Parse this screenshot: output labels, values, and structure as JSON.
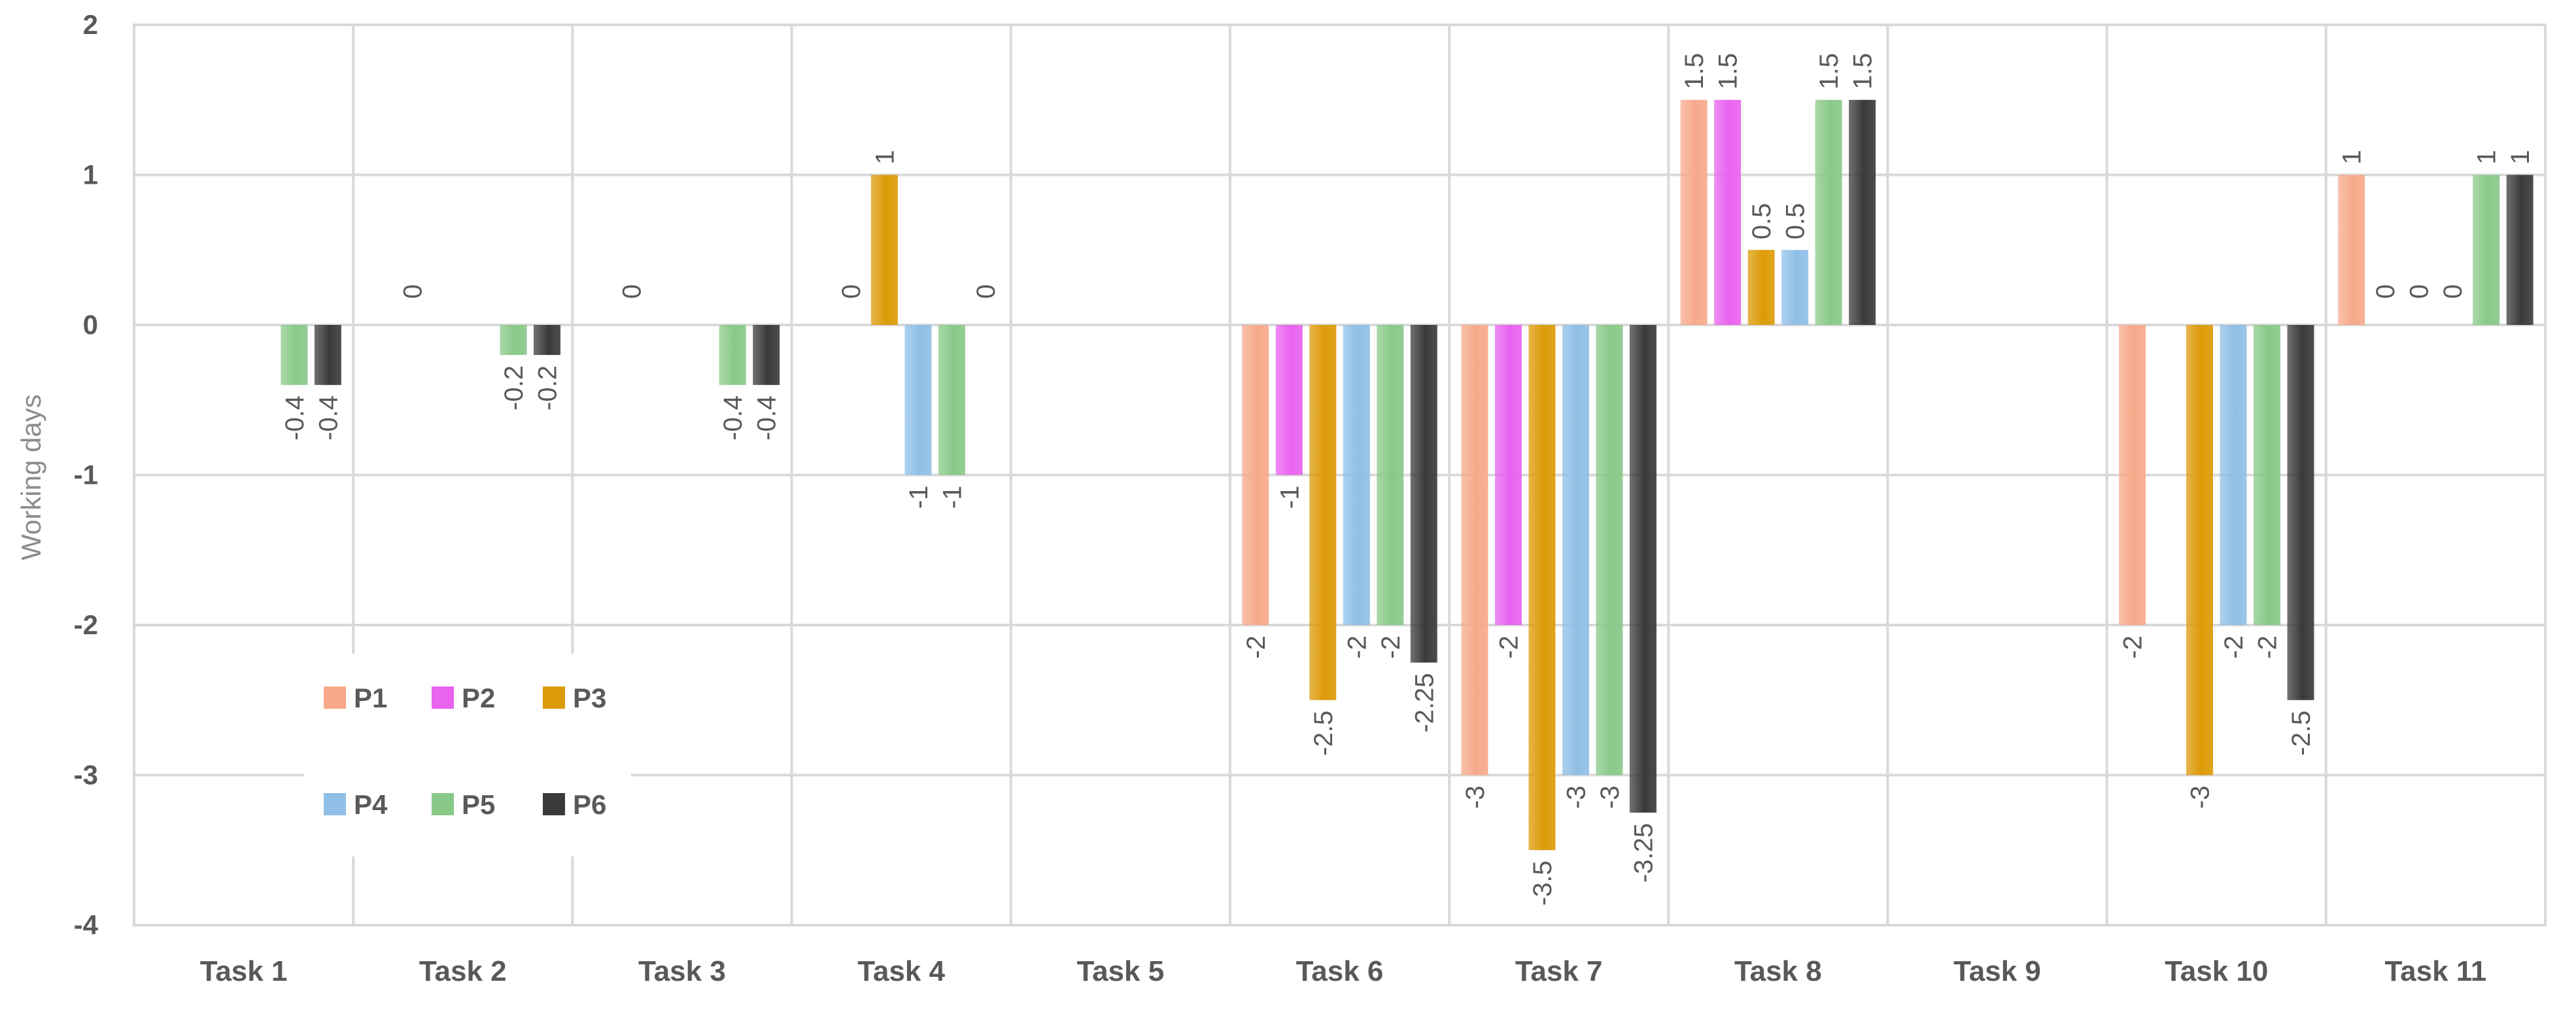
{
  "chart_data": {
    "type": "bar",
    "title": "",
    "xlabel": "",
    "ylabel": "Working days",
    "ylim": [
      -4,
      2
    ],
    "yticks": [
      2,
      1,
      0,
      -1,
      -2,
      -3,
      -4
    ],
    "grid": true,
    "legend_position": "bottom-left inside plot",
    "categories": [
      "Task 1",
      "Task 2",
      "Task 3",
      "Task 4",
      "Task 5",
      "Task 6",
      "Task 7",
      "Task 8",
      "Task 9",
      "Task 10",
      "Task 11"
    ],
    "series": [
      {
        "name": "P1",
        "color": "#f7a98a",
        "values": [
          null,
          null,
          null,
          null,
          null,
          -2,
          -3,
          1.5,
          null,
          -2,
          1
        ]
      },
      {
        "name": "P2",
        "color": "#e962f0",
        "values": [
          null,
          0,
          0,
          0,
          null,
          -1,
          -2,
          1.5,
          null,
          null,
          0
        ]
      },
      {
        "name": "P3",
        "color": "#dc9a06",
        "values": [
          null,
          null,
          null,
          1,
          null,
          -2.5,
          -3.5,
          0.5,
          null,
          -3,
          0
        ]
      },
      {
        "name": "P4",
        "color": "#8fbfe6",
        "values": [
          null,
          null,
          null,
          -1,
          null,
          -2,
          -3,
          0.5,
          null,
          -2,
          0
        ]
      },
      {
        "name": "P5",
        "color": "#88c988",
        "values": [
          -0.4,
          -0.2,
          -0.4,
          -1,
          null,
          -2,
          -3,
          1.5,
          null,
          -2,
          1
        ]
      },
      {
        "name": "P6",
        "color": "#3a3a3a",
        "values": [
          -0.4,
          -0.2,
          -0.4,
          0,
          null,
          -2.25,
          -3.25,
          1.5,
          null,
          -2.5,
          1
        ]
      }
    ],
    "label_text": [
      [
        null,
        null,
        null,
        null,
        null,
        "-2",
        "-3",
        "1.5",
        null,
        "-2",
        "1"
      ],
      [
        null,
        "0",
        "0",
        "0",
        null,
        "-1",
        "-2",
        "1.5",
        null,
        null,
        "0"
      ],
      [
        null,
        null,
        null,
        "1",
        null,
        "-2.5",
        "-3.5",
        "0.5",
        null,
        "-3",
        "0"
      ],
      [
        null,
        null,
        null,
        "-1",
        null,
        "-2",
        "-3",
        "0.5",
        null,
        "-2",
        "0"
      ],
      [
        "-0.4",
        "-0.2",
        "-0.4",
        "-1",
        null,
        "-2",
        "-3",
        "1.5",
        null,
        "-2",
        "1"
      ],
      [
        "-0.4",
        "-0.2",
        "-0.4",
        "0",
        null,
        "-2.25",
        "-3.25",
        "1.5",
        null,
        "-2.5",
        "1"
      ]
    ]
  }
}
